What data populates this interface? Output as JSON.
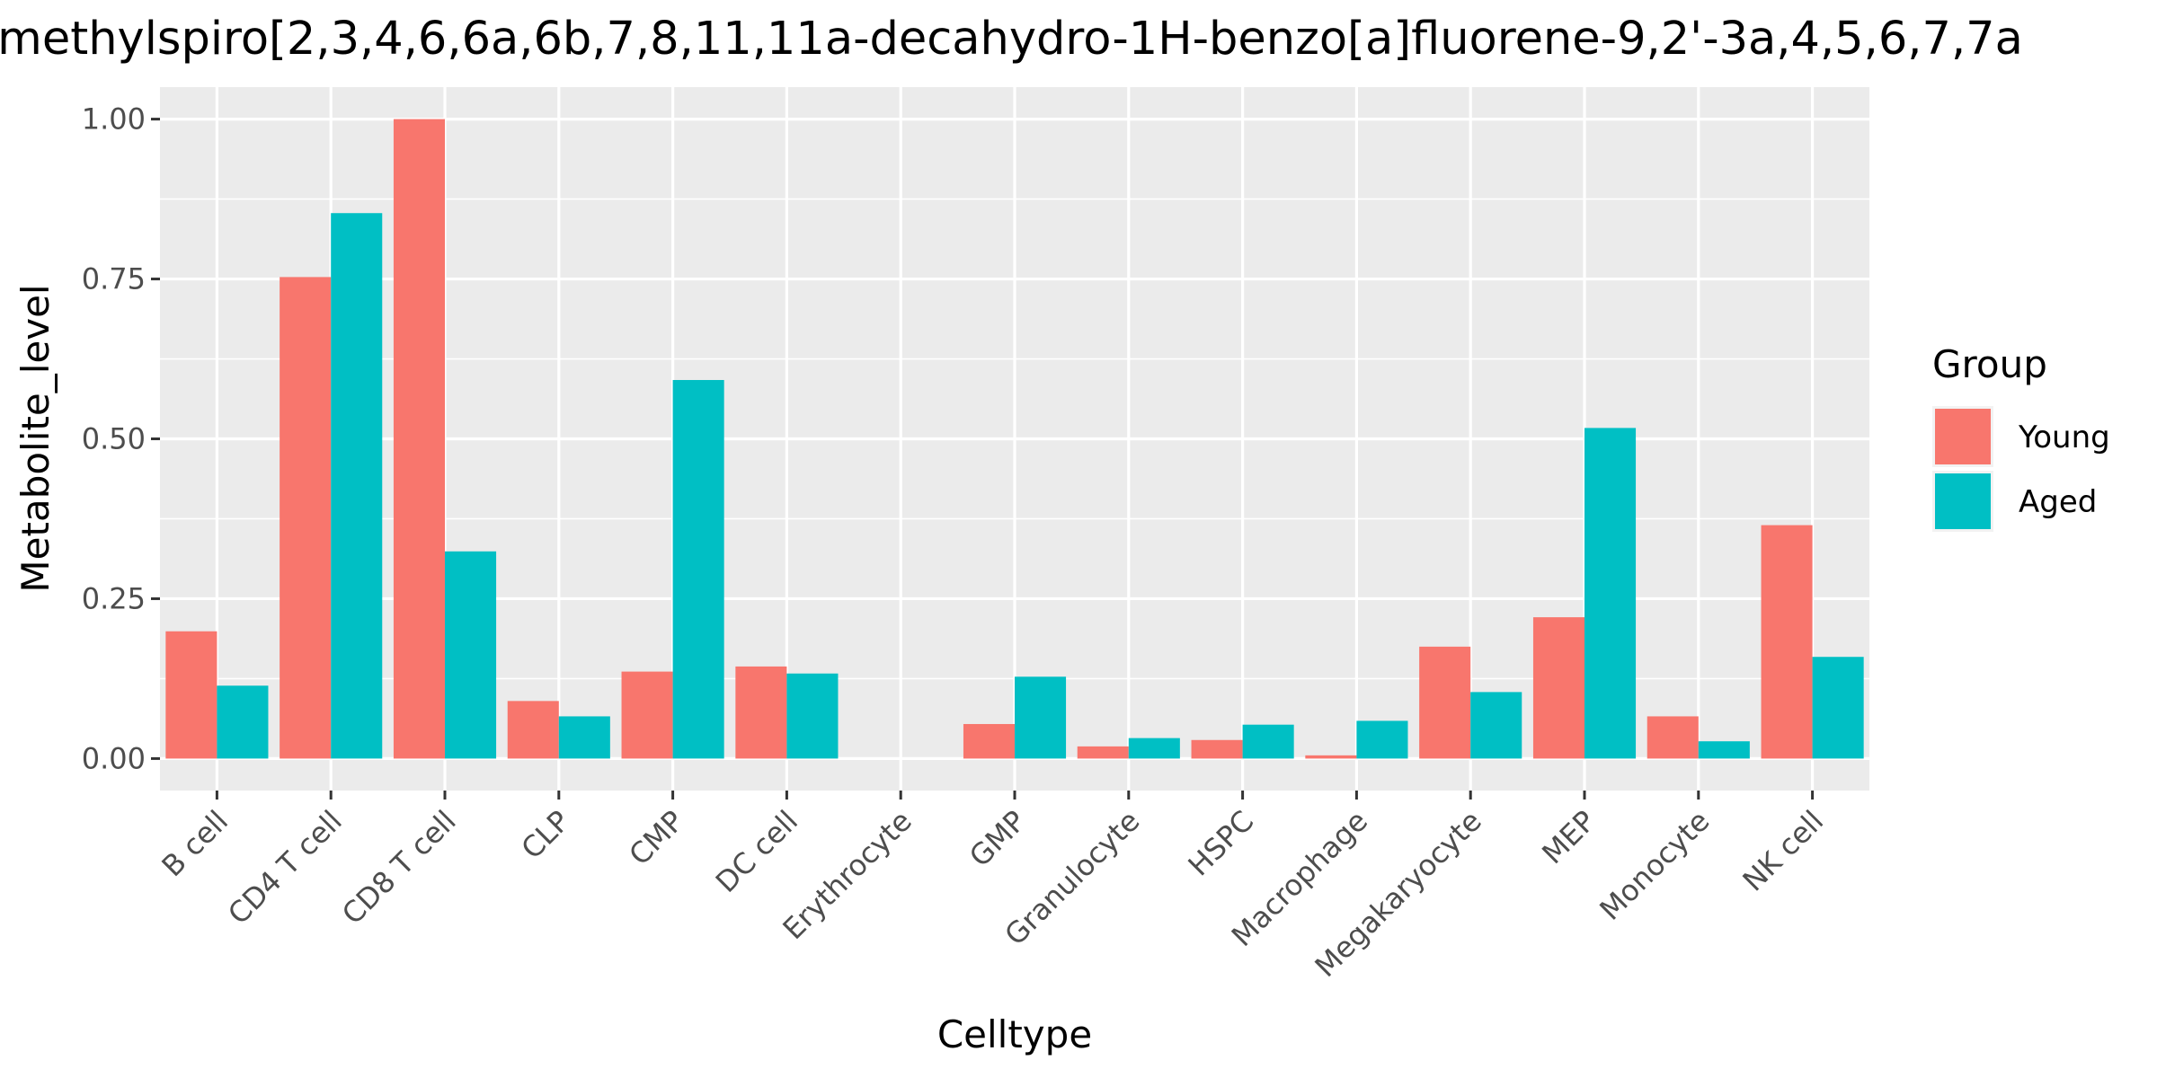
{
  "chart_data": {
    "type": "bar",
    "title": "methylspiro[2,3,4,6,6a,6b,7,8,11,11a-decahydro-1H-benzo[a]fluorene-9,2'-3a,4,5,6,7,7a",
    "xlabel": "Celltype",
    "ylabel": "Metabolite_level",
    "ylim": [
      -0.05,
      1.05
    ],
    "yticks": [
      0.0,
      0.25,
      0.5,
      0.75,
      1.0
    ],
    "ytick_labels": [
      "0.00",
      "0.25",
      "0.50",
      "0.75",
      "1.00"
    ],
    "grid": true,
    "legend": {
      "title": "Group",
      "position": "right"
    },
    "categories": [
      "B cell",
      "CD4 T cell",
      "CD8 T cell",
      "CLP",
      "CMP",
      "DC cell",
      "Erythrocyte",
      "GMP",
      "Granulocyte",
      "HSPC",
      "Macrophage",
      "Megakaryocyte",
      "MEP",
      "Monocyte",
      "NK cell"
    ],
    "series": [
      {
        "name": "Young",
        "color": "#F8766D",
        "values": [
          0.199,
          0.753,
          1.0,
          0.09,
          0.136,
          0.144,
          0.0,
          0.054,
          0.019,
          0.029,
          0.005,
          0.175,
          0.221,
          0.066,
          0.365
        ]
      },
      {
        "name": "Aged",
        "color": "#00BFC4",
        "values": [
          0.114,
          0.853,
          0.324,
          0.066,
          0.592,
          0.133,
          0.0,
          0.128,
          0.032,
          0.053,
          0.059,
          0.104,
          0.517,
          0.027,
          0.159
        ]
      }
    ],
    "colors": {
      "panel_bg": "#EBEBEB",
      "grid": "#FFFFFF"
    }
  }
}
